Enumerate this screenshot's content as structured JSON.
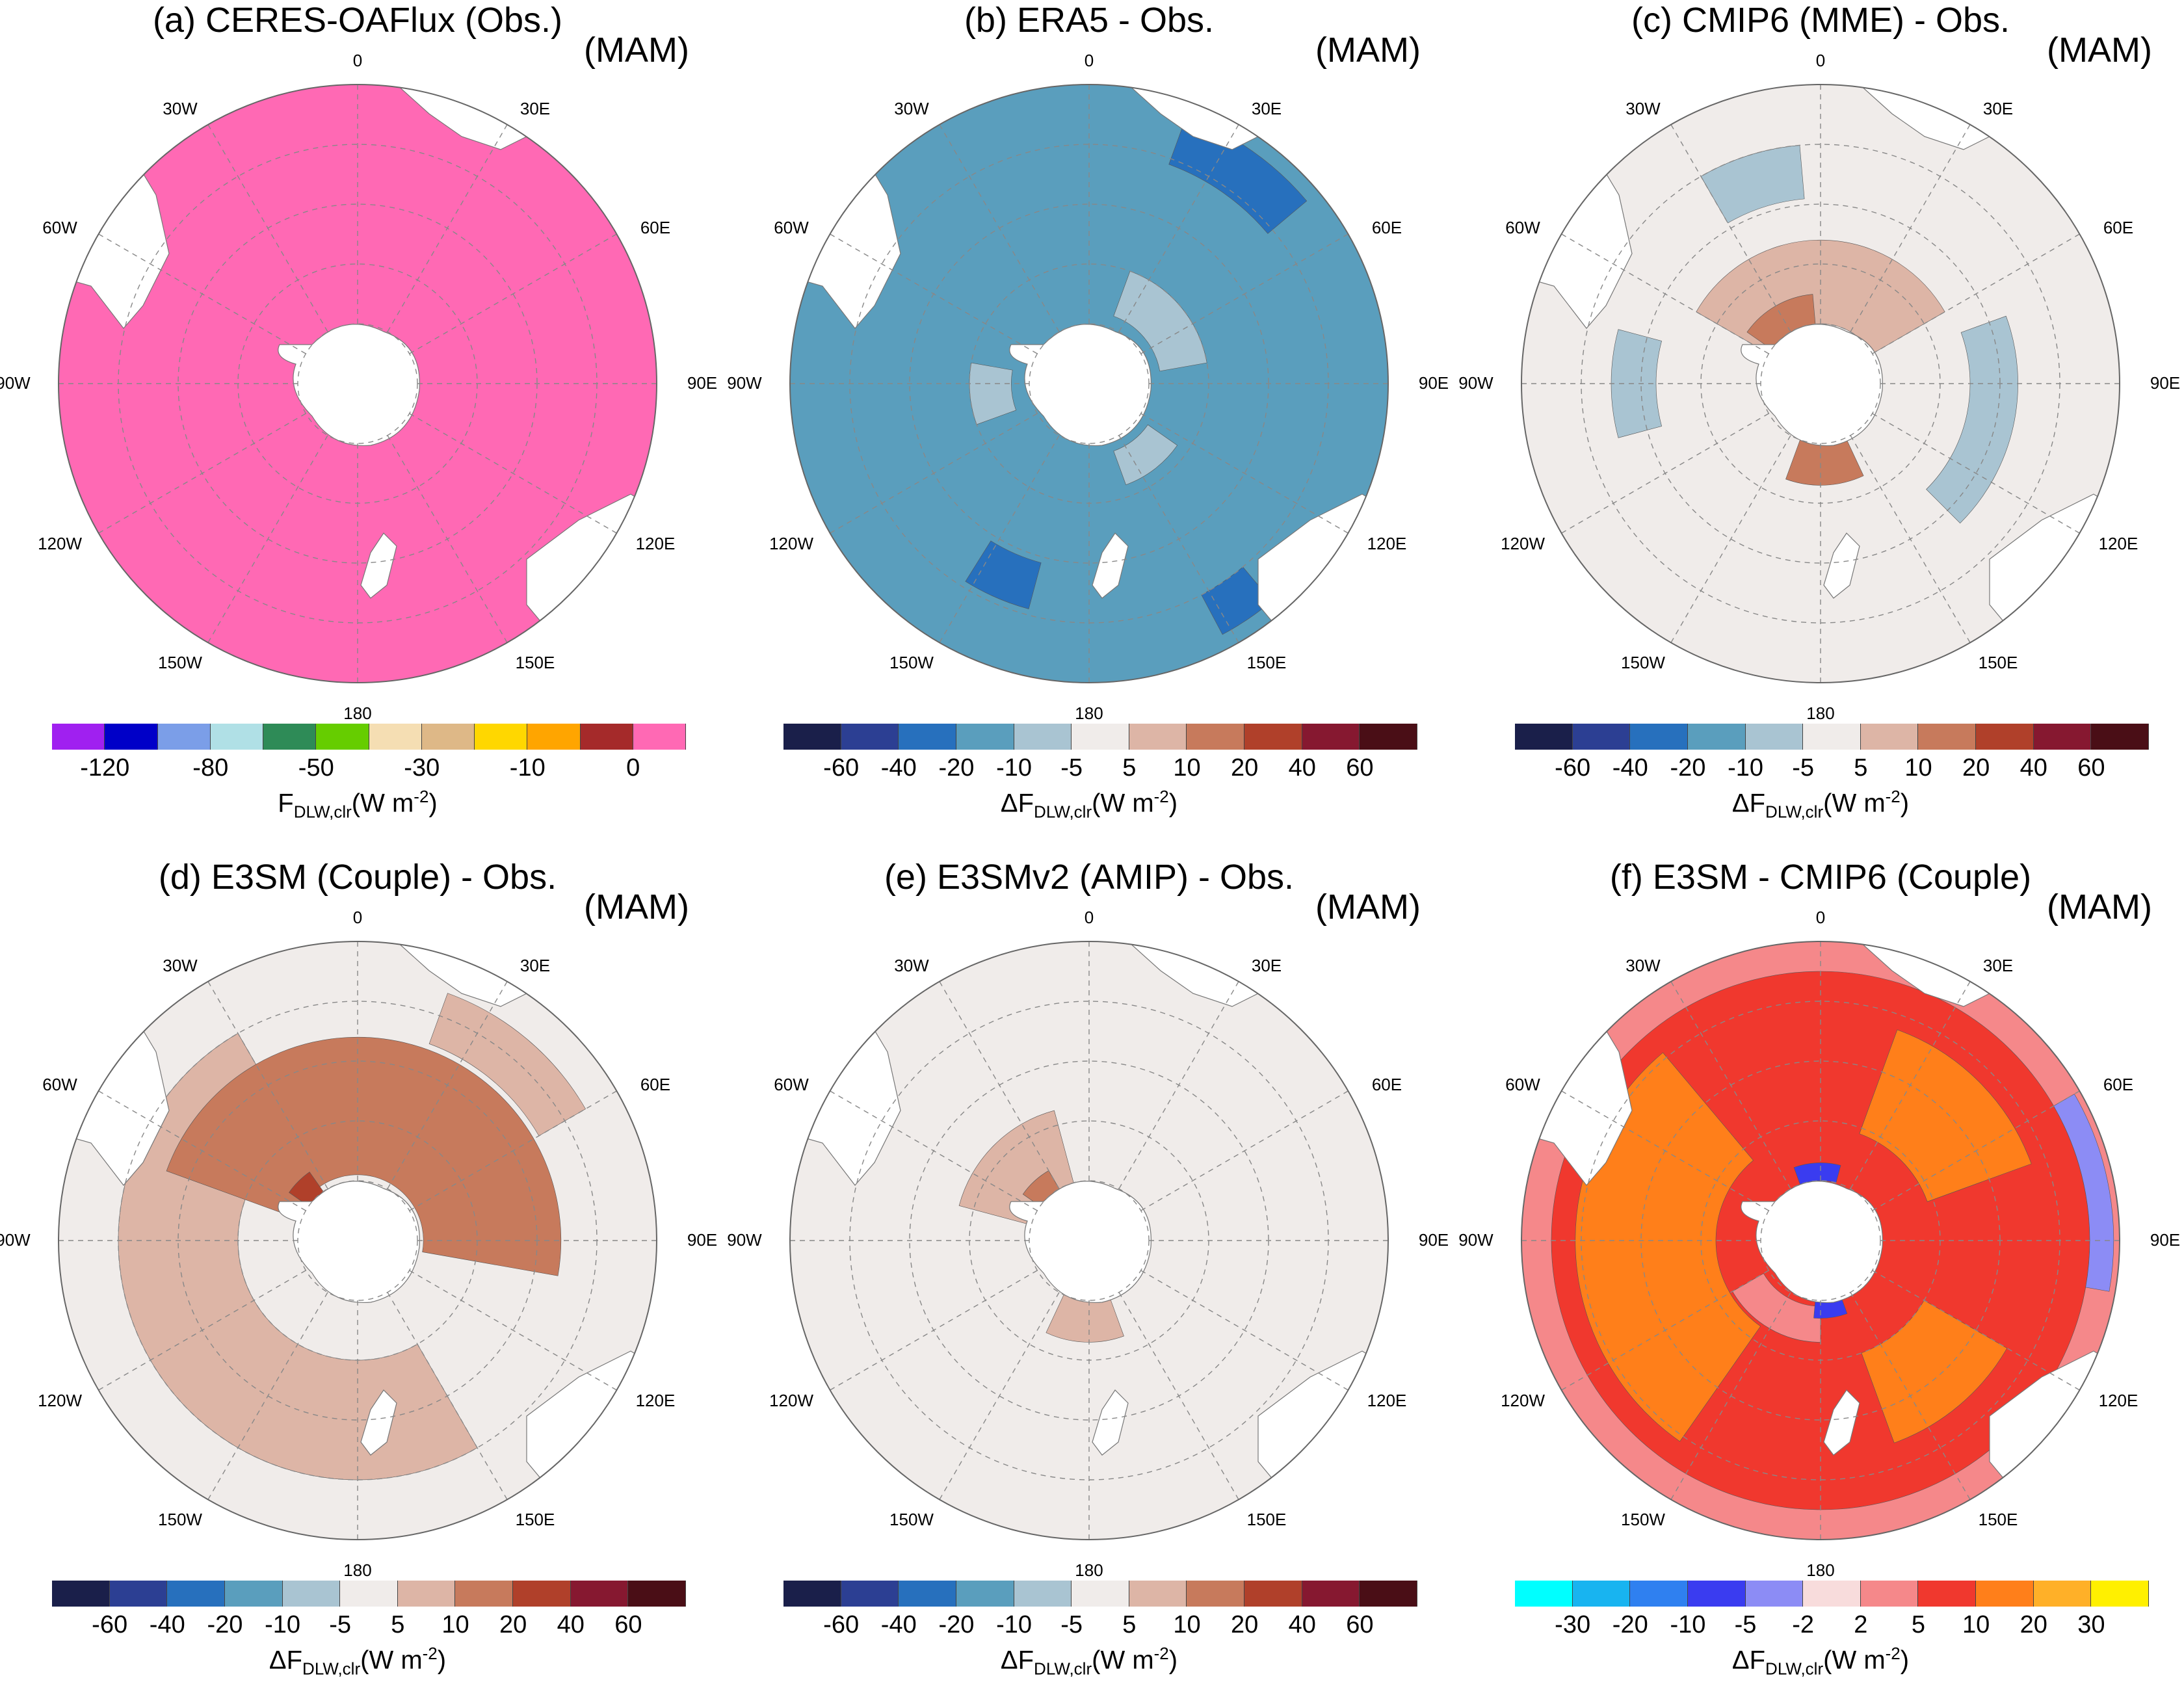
{
  "figure": {
    "season": "(MAM)",
    "lon_labels": [
      "0",
      "30E",
      "60E",
      "90E",
      "120E",
      "150E",
      "180",
      "150W",
      "120W",
      "90W",
      "60W",
      "30W"
    ]
  },
  "colorbars": {
    "abs": {
      "colors": [
        "#a020f0",
        "#0000c8",
        "#7b9ee8",
        "#b0e0e6",
        "#2e8b57",
        "#66cd00",
        "#f5deb3",
        "#deb887",
        "#ffd700",
        "#ffa500",
        "#a52a2a",
        "#ff69b4"
      ],
      "ticks": [
        "-120",
        "-80",
        "-50",
        "-30",
        "-10",
        "0"
      ],
      "label_main": "F",
      "label_sub": "DLW,clr",
      "label_unit": "(W m",
      "label_sup": "-2",
      "label_close": ")"
    },
    "diff": {
      "colors": [
        "#1a1f4a",
        "#2c3f93",
        "#2770bd",
        "#5a9ebd",
        "#a9c4d2",
        "#f0ecea",
        "#ddb5a6",
        "#c77a5c",
        "#b0402a",
        "#861830",
        "#4a0e16"
      ],
      "ticks": [
        "-60",
        "-40",
        "-20",
        "-10",
        "-5",
        "5",
        "10",
        "20",
        "40",
        "60"
      ],
      "label_main": "ΔF",
      "label_sub": "DLW,clr",
      "label_unit": "(W m",
      "label_sup": "-2",
      "label_close": ")"
    },
    "e3cm": {
      "colors": [
        "#00ffff",
        "#18b4f0",
        "#2f80f0",
        "#3a3cf0",
        "#8c8cf5",
        "#f8dcdc",
        "#f5888a",
        "#f0382e",
        "#ff7f1a",
        "#ffb028",
        "#fff000"
      ],
      "ticks": [
        "-30",
        "-20",
        "-10",
        "-5",
        "-2",
        "2",
        "5",
        "10",
        "20",
        "30"
      ],
      "label_main": "ΔF",
      "label_sub": "DLW,clr",
      "label_unit": "(W m",
      "label_sup": "-2",
      "label_close": ")"
    }
  },
  "panels": [
    {
      "title": "(a) CERES-OAFlux (Obs.)",
      "colorbar": "abs",
      "base_color": "#ff69b4",
      "patches": []
    },
    {
      "title": "(b) ERA5 - Obs.",
      "colorbar": "diff",
      "base_color": "#5a9ebd",
      "patches": [
        {
          "kind": "arc",
          "color": "#a9c4d2",
          "from_deg": 20,
          "to_deg": 80,
          "inner": 0.24,
          "outer": 0.4
        },
        {
          "kind": "arc",
          "color": "#a9c4d2",
          "from_deg": 125,
          "to_deg": 160,
          "inner": 0.24,
          "outer": 0.36
        },
        {
          "kind": "arc",
          "color": "#a9c4d2",
          "from_deg": 250,
          "to_deg": 280,
          "inner": 0.26,
          "outer": 0.4
        },
        {
          "kind": "arc",
          "color": "#2770bd",
          "from_deg": 20,
          "to_deg": 50,
          "inner": 0.78,
          "outer": 0.95
        },
        {
          "kind": "arc",
          "color": "#2770bd",
          "from_deg": 195,
          "to_deg": 212,
          "inner": 0.62,
          "outer": 0.78
        },
        {
          "kind": "arc",
          "color": "#2770bd",
          "from_deg": 140,
          "to_deg": 152,
          "inner": 0.8,
          "outer": 0.95
        }
      ]
    },
    {
      "title": "(c) CMIP6 (MME) - Obs.",
      "colorbar": "diff",
      "base_color": "#f0ecea",
      "patches": [
        {
          "kind": "arc",
          "color": "#ddb5a6",
          "from_deg": 300,
          "to_deg": 420,
          "inner": 0.2,
          "outer": 0.48
        },
        {
          "kind": "arc",
          "color": "#c77a5c",
          "from_deg": 305,
          "to_deg": 355,
          "inner": 0.18,
          "outer": 0.3
        },
        {
          "kind": "arc",
          "color": "#c77a5c",
          "from_deg": 155,
          "to_deg": 200,
          "inner": 0.2,
          "outer": 0.34
        },
        {
          "kind": "arc",
          "color": "#a9c4d2",
          "from_deg": 330,
          "to_deg": 355,
          "inner": 0.62,
          "outer": 0.8
        },
        {
          "kind": "arc",
          "color": "#a9c4d2",
          "from_deg": 70,
          "to_deg": 135,
          "inner": 0.5,
          "outer": 0.66
        },
        {
          "kind": "arc",
          "color": "#a9c4d2",
          "from_deg": 255,
          "to_deg": 285,
          "inner": 0.55,
          "outer": 0.7
        }
      ]
    },
    {
      "title": "(d) E3SM (Couple) - Obs.",
      "colorbar": "diff",
      "base_color": "#f0ecea",
      "patches": [
        {
          "kind": "arc",
          "color": "#ddb5a6",
          "from_deg": 150,
          "to_deg": 330,
          "inner": 0.4,
          "outer": 0.8
        },
        {
          "kind": "arc",
          "color": "#c77a5c",
          "from_deg": 290,
          "to_deg": 460,
          "inner": 0.22,
          "outer": 0.68
        },
        {
          "kind": "arc",
          "color": "#ddb5a6",
          "from_deg": 20,
          "to_deg": 60,
          "inner": 0.7,
          "outer": 0.88
        },
        {
          "kind": "arc",
          "color": "#b0402a",
          "from_deg": 305,
          "to_deg": 325,
          "inner": 0.18,
          "outer": 0.28
        }
      ]
    },
    {
      "title": "(e) E3SMv2 (AMIP) - Obs.",
      "colorbar": "diff",
      "base_color": "#f0ecea",
      "patches": [
        {
          "kind": "arc",
          "color": "#ddb5a6",
          "from_deg": 285,
          "to_deg": 345,
          "inner": 0.18,
          "outer": 0.45
        },
        {
          "kind": "arc",
          "color": "#c77a5c",
          "from_deg": 305,
          "to_deg": 330,
          "inner": 0.18,
          "outer": 0.27
        },
        {
          "kind": "arc",
          "color": "#ddb5a6",
          "from_deg": 160,
          "to_deg": 205,
          "inner": 0.2,
          "outer": 0.34
        }
      ]
    },
    {
      "title": "(f) E3SM - CMIP6 (Couple)",
      "colorbar": "e3cm",
      "base_color": "#f0382e",
      "patches": [
        {
          "kind": "arc",
          "color": "#f5888a",
          "from_deg": 0,
          "to_deg": 360,
          "inner": 0.9,
          "outer": 1.0
        },
        {
          "kind": "arc",
          "color": "#ff7f1a",
          "from_deg": 215,
          "to_deg": 320,
          "inner": 0.35,
          "outer": 0.82
        },
        {
          "kind": "arc",
          "color": "#ff7f1a",
          "from_deg": 20,
          "to_deg": 70,
          "inner": 0.38,
          "outer": 0.75
        },
        {
          "kind": "arc",
          "color": "#ff7f1a",
          "from_deg": 120,
          "to_deg": 160,
          "inner": 0.4,
          "outer": 0.72
        },
        {
          "kind": "arc",
          "color": "#f5888a",
          "from_deg": 180,
          "to_deg": 240,
          "inner": 0.22,
          "outer": 0.34
        },
        {
          "kind": "arc",
          "color": "#3a3cf0",
          "from_deg": 340,
          "to_deg": 375,
          "inner": 0.2,
          "outer": 0.26
        },
        {
          "kind": "arc",
          "color": "#3a3cf0",
          "from_deg": 160,
          "to_deg": 185,
          "inner": 0.2,
          "outer": 0.26
        },
        {
          "kind": "arc",
          "color": "#8c8cf5",
          "from_deg": 60,
          "to_deg": 100,
          "inner": 0.9,
          "outer": 0.98
        }
      ]
    }
  ]
}
